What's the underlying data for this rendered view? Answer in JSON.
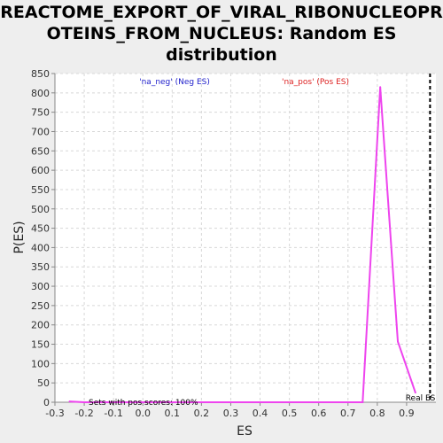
{
  "title_lines": [
    "REACTOME_EXPORT_OF_VIRAL_RIBONUCLEOPR",
    "OTEINS_FROM_NUCLEUS: Random ES",
    "distribution"
  ],
  "colors": {
    "background": "#eeeeee",
    "plot_bg": "#ffffff",
    "line": "#ee44ee",
    "neg_legend": "#2222cc",
    "pos_legend": "#dd2222",
    "gridline": "#d8d8d8"
  },
  "chart_data": {
    "type": "line",
    "xlabel": "ES",
    "ylabel": "P(ES)",
    "xlim": [
      -0.3,
      1.0
    ],
    "ylim": [
      0,
      850
    ],
    "x_ticks": [
      "-0.3",
      "-0.2",
      "-0.1",
      "0.0",
      "0.1",
      "0.2",
      "0.3",
      "0.4",
      "0.5",
      "0.6",
      "0.7",
      "0.8",
      "0.9"
    ],
    "x_tick_values": [
      -0.3,
      -0.2,
      -0.1,
      0.0,
      0.1,
      0.2,
      0.3,
      0.4,
      0.5,
      0.6,
      0.7,
      0.8,
      0.9
    ],
    "y_ticks": [
      0,
      50,
      100,
      150,
      200,
      250,
      300,
      350,
      400,
      450,
      500,
      550,
      600,
      650,
      700,
      750,
      800,
      850
    ],
    "grid": true,
    "legend": [
      {
        "label": "'na_neg' (Neg ES)",
        "color": "#2222cc"
      },
      {
        "label": "'na_pos' (Pos ES)",
        "color": "#dd2222"
      }
    ],
    "series": [
      {
        "x": [
          -0.25,
          -0.2,
          0.0,
          0.2,
          0.4,
          0.6,
          0.75,
          0.81,
          0.87,
          0.93
        ],
        "y": [
          2,
          0,
          0,
          0,
          0,
          0,
          0,
          815,
          157,
          25
        ]
      }
    ],
    "real_es": {
      "label": "Real ES",
      "value": 0.98
    },
    "annotation": "Sets with pos scores: 100%"
  }
}
